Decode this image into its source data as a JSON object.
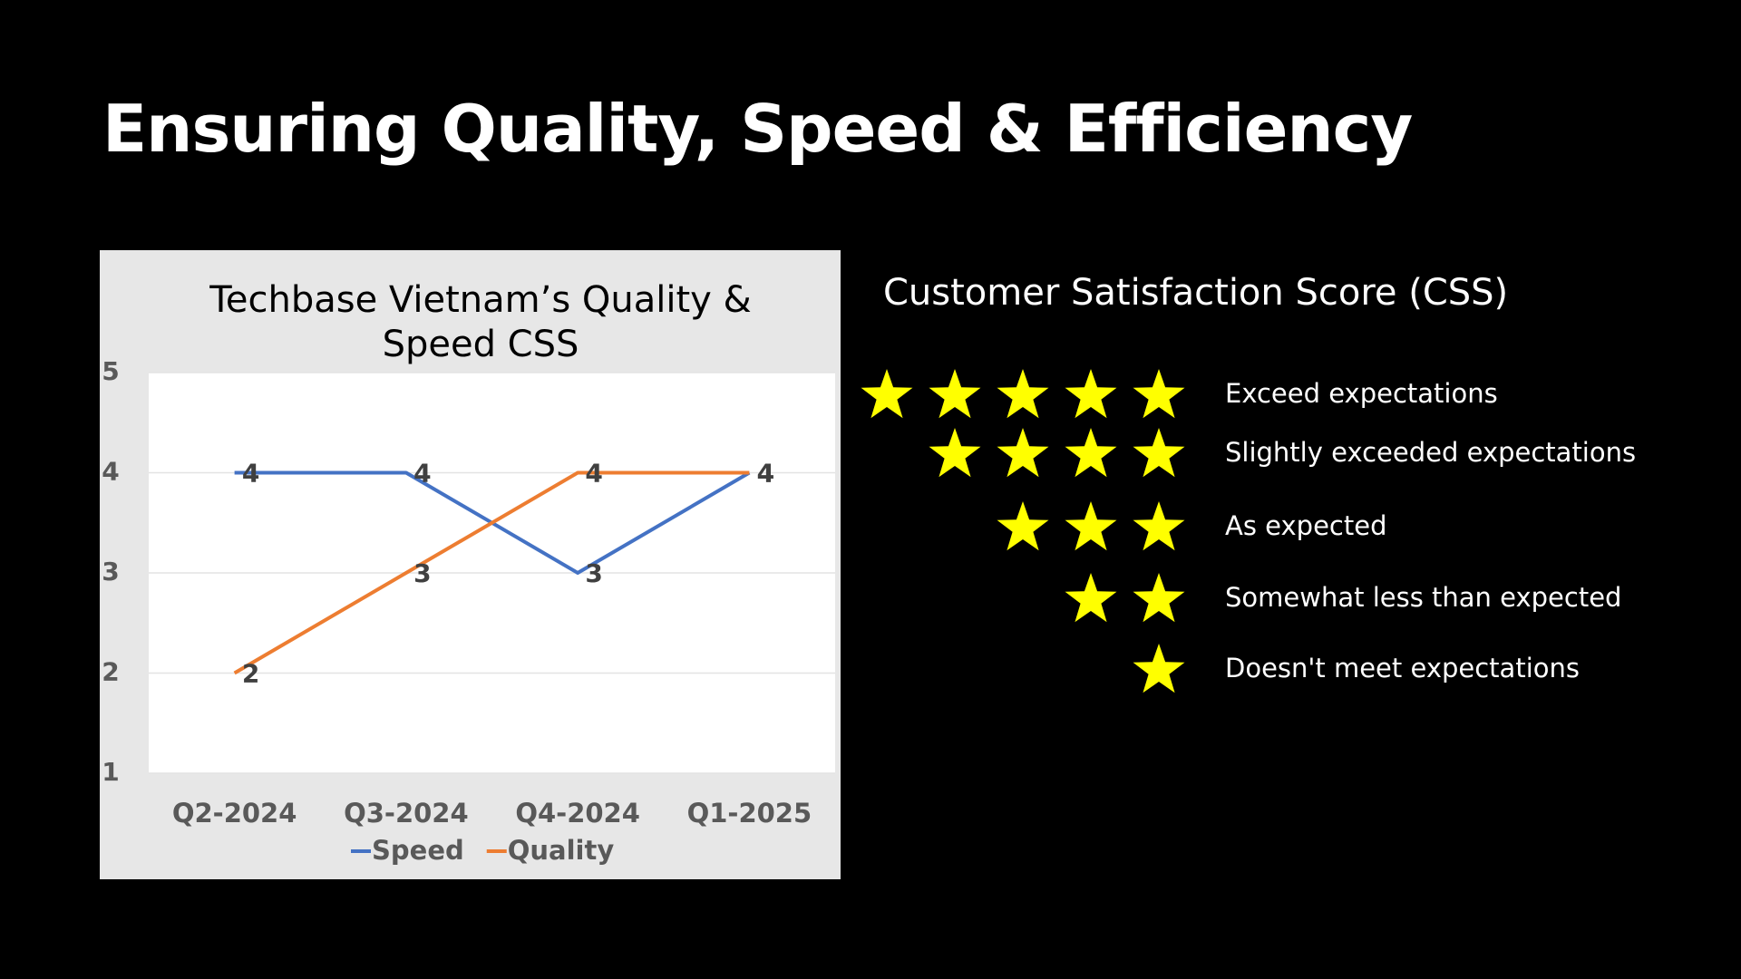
{
  "slide": {
    "title": "Ensuring Quality, Speed & Efficiency",
    "css": {
      "title": "Customer Satisfaction Score (CSS)",
      "ratings": [
        {
          "stars": 5,
          "label": "Exceed expectations"
        },
        {
          "stars": 4,
          "label": "Slightly exceeded expectations"
        },
        {
          "stars": 3,
          "label": "As expected"
        },
        {
          "stars": 2,
          "label": "Somewhat less than expected"
        },
        {
          "stars": 1,
          "label": "Doesn't meet expectations"
        }
      ],
      "star_color": "#ffff00"
    }
  },
  "chart_data": {
    "type": "line",
    "title": "Techbase Vietnam’s Quality & Speed CSS",
    "categories": [
      "Q2-2024",
      "Q3-2024",
      "Q4-2024",
      "Q1-2025"
    ],
    "series": [
      {
        "name": "Speed",
        "color": "#4472c4",
        "values": [
          4,
          4,
          3,
          4
        ]
      },
      {
        "name": "Quality",
        "color": "#ed7d31",
        "values": [
          2,
          3,
          4,
          4
        ]
      }
    ],
    "ylim": [
      1,
      5
    ],
    "yticks": [
      1,
      2,
      3,
      4,
      5
    ],
    "grid": true,
    "legend": "bottom"
  }
}
